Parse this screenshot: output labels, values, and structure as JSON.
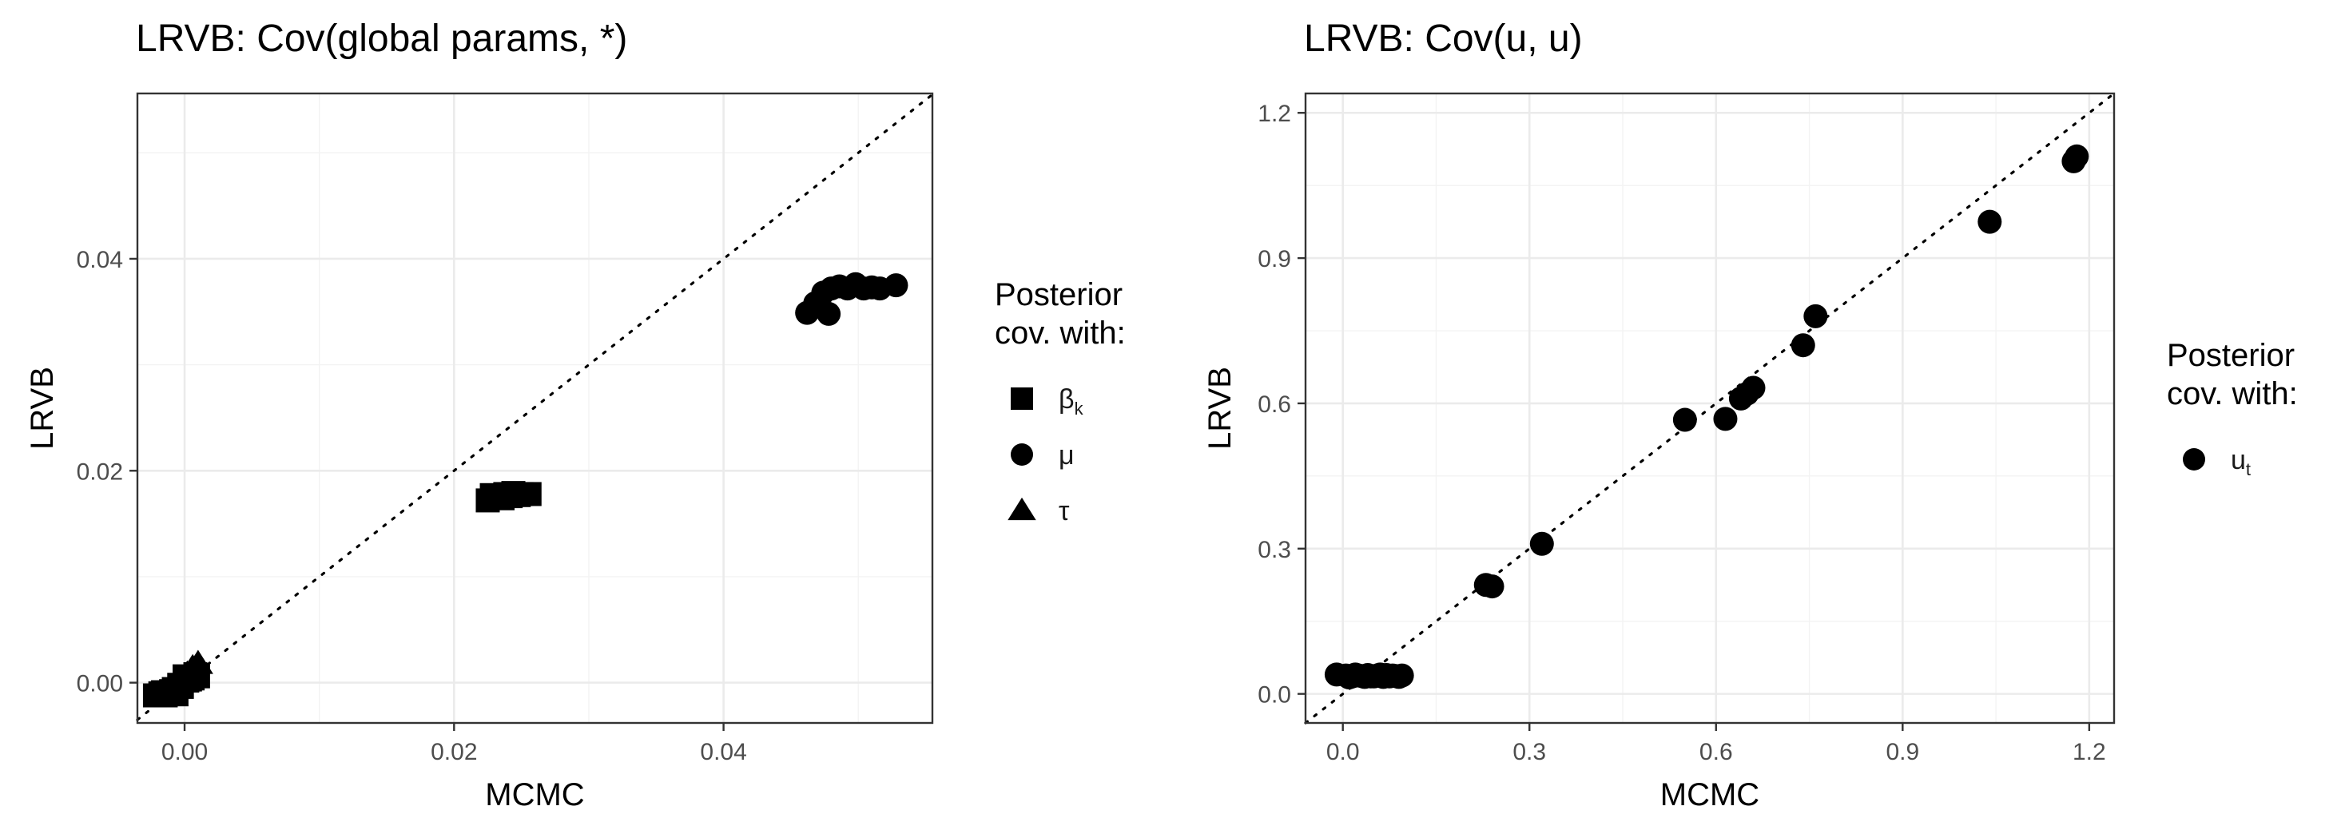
{
  "chart_data": [
    {
      "type": "scatter",
      "title": "LRVB: Cov(global params, *)",
      "xlabel": "MCMC",
      "ylabel": "LRVB",
      "xlim": [
        -0.0035,
        0.0555
      ],
      "ylim": [
        -0.0038,
        0.0556
      ],
      "xticks": [
        0.0,
        0.02,
        0.04
      ],
      "xtick_labels": [
        "0.00",
        "0.02",
        "0.04"
      ],
      "yticks": [
        0.0,
        0.02,
        0.04
      ],
      "ytick_labels": [
        "0.00",
        "0.02",
        "0.04"
      ],
      "grid": true,
      "reference_line": "y = x (dotted)",
      "legend": {
        "title_lines": [
          "Posterior",
          "cov. with:"
        ],
        "placement": "right",
        "entries": [
          {
            "shape": "square",
            "label_main": "β",
            "label_sub": "k"
          },
          {
            "shape": "circle",
            "label_main": "μ",
            "label_sub": ""
          },
          {
            "shape": "triangle",
            "label_main": "τ",
            "label_sub": ""
          }
        ]
      },
      "series": [
        {
          "name": "βk",
          "shape": "square",
          "x": [
            -0.0022,
            -0.0018,
            -0.0014,
            -0.001,
            -0.0006,
            -0.0002,
            0.0002,
            0.0006,
            0.001,
            -0.0016,
            -0.0008,
            0.0,
            0.0004,
            0.0008,
            -0.0004,
            0.0225,
            0.0232,
            0.0238,
            0.0244,
            0.025,
            0.0256,
            0.0228,
            0.0236,
            0.0242,
            0.0248
          ],
          "y": [
            -0.0012,
            -0.001,
            -0.0012,
            -0.0008,
            -0.0011,
            -0.0004,
            0.0002,
            0.0004,
            0.0006,
            -0.0009,
            -0.0006,
            0.0006,
            0.0003,
            0.0008,
            -0.0002,
            0.0172,
            0.0176,
            0.0178,
            0.0179,
            0.0178,
            0.0178,
            0.0177,
            0.0174,
            0.0176,
            0.0177
          ]
        },
        {
          "name": "μ",
          "shape": "circle",
          "x": [
            0.0462,
            0.0468,
            0.0474,
            0.048,
            0.0486,
            0.0492,
            0.0498,
            0.0504,
            0.051,
            0.0516,
            0.0528,
            0.0478
          ],
          "y": [
            0.0349,
            0.0358,
            0.0368,
            0.0372,
            0.0374,
            0.0372,
            0.0376,
            0.0372,
            0.0373,
            0.0372,
            0.0375,
            0.0348
          ]
        },
        {
          "name": "τ",
          "shape": "triangle",
          "x": [
            0.0002,
            0.0006,
            0.001
          ],
          "y": [
            0.0008,
            0.0014,
            0.0018
          ]
        }
      ]
    },
    {
      "type": "scatter",
      "title": "LRVB: Cov(u, u)",
      "xlabel": "MCMC",
      "ylabel": "LRVB",
      "xlim": [
        -0.06,
        1.24
      ],
      "ylim": [
        -0.06,
        1.24
      ],
      "xticks": [
        0.0,
        0.3,
        0.6,
        0.9,
        1.2
      ],
      "xtick_labels": [
        "0.0",
        "0.3",
        "0.6",
        "0.9",
        "1.2"
      ],
      "yticks": [
        0.0,
        0.3,
        0.6,
        0.9,
        1.2
      ],
      "ytick_labels": [
        "0.0",
        "0.3",
        "0.6",
        "0.9",
        "1.2"
      ],
      "grid": true,
      "reference_line": "y = x (dotted)",
      "legend": {
        "title_lines": [
          "Posterior",
          "cov. with:"
        ],
        "placement": "right",
        "entries": [
          {
            "shape": "circle",
            "label_main": "u",
            "label_sub": "t"
          }
        ]
      },
      "series": [
        {
          "name": "ut",
          "shape": "circle",
          "x": [
            -0.01,
            0.005,
            0.015,
            0.025,
            0.035,
            0.045,
            0.055,
            0.065,
            0.075,
            0.085,
            0.095,
            0.02,
            0.04,
            0.06,
            0.08,
            0.01,
            0.03,
            0.05,
            0.07,
            0.09,
            0.23,
            0.24,
            0.32,
            0.55,
            0.615,
            0.64,
            0.65,
            0.66,
            0.74,
            0.76,
            1.04,
            1.175,
            1.18
          ],
          "y": [
            0.04,
            0.038,
            0.036,
            0.038,
            0.035,
            0.036,
            0.038,
            0.035,
            0.036,
            0.037,
            0.038,
            0.04,
            0.039,
            0.04,
            0.038,
            0.034,
            0.037,
            0.036,
            0.039,
            0.035,
            0.225,
            0.222,
            0.31,
            0.566,
            0.568,
            0.61,
            0.62,
            0.632,
            0.72,
            0.78,
            0.975,
            1.1,
            1.11
          ]
        }
      ]
    }
  ]
}
